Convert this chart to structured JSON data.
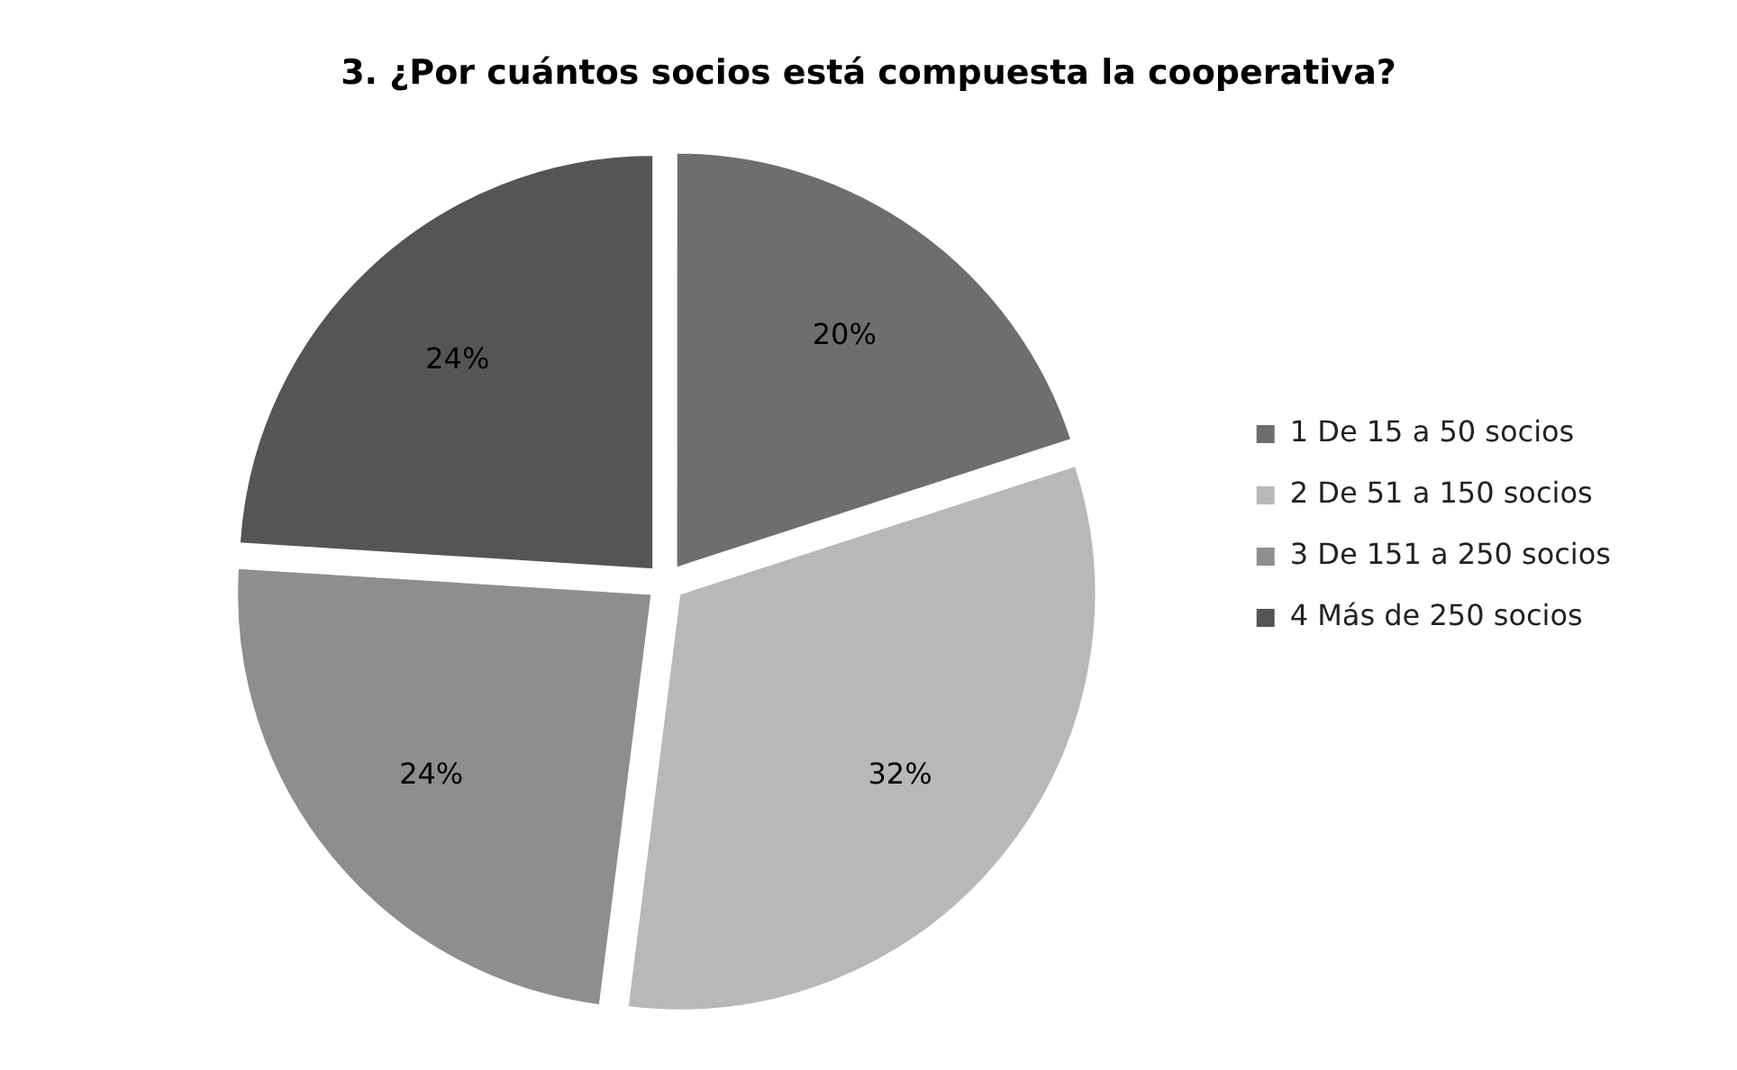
{
  "chart_data": {
    "type": "pie",
    "title": "3. ¿Por cuántos socios está compuesta la cooperativa?",
    "categories": [
      "1 De 15 a 50 socios",
      "2 De 51 a 150 socios",
      "3 De 151 a 250 socios",
      "4 Más de 250 socios"
    ],
    "values": [
      20,
      32,
      24,
      24
    ],
    "colors": [
      "#6e6e6e",
      "#b8b8b8",
      "#8e8e8e",
      "#555555"
    ],
    "value_labels": [
      "20%",
      "32%",
      "24%",
      "24%"
    ],
    "legend": "right"
  }
}
